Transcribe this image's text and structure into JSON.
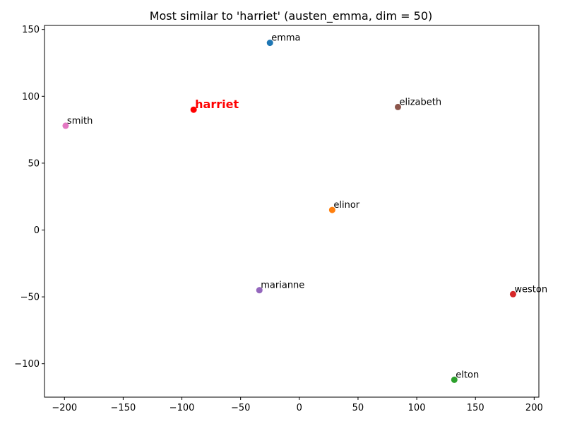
{
  "chart_data": {
    "type": "scatter",
    "title": "Most similar to 'harriet' (austen_emma, dim = 50)",
    "xlabel": "",
    "ylabel": "",
    "xlim": [
      -217,
      204
    ],
    "ylim": [
      -125,
      153
    ],
    "xticks": [
      -200,
      -150,
      -100,
      -50,
      0,
      50,
      100,
      150,
      200
    ],
    "yticks": [
      -100,
      -50,
      0,
      50,
      100,
      150
    ],
    "xtick_labels": [
      "−200",
      "−150",
      "−100",
      "−50",
      "0",
      "50",
      "100",
      "150",
      "200"
    ],
    "ytick_labels": [
      "−100",
      "−50",
      "0",
      "50",
      "100",
      "150"
    ],
    "grid": false,
    "points": [
      {
        "label": "harriet",
        "x": -90,
        "y": 90,
        "color": "#ff0000",
        "highlight": true
      },
      {
        "label": "emma",
        "x": -25,
        "y": 140,
        "color": "#1f77b4",
        "highlight": false
      },
      {
        "label": "elinor",
        "x": 28,
        "y": 15,
        "color": "#ff7f0e",
        "highlight": false
      },
      {
        "label": "elton",
        "x": 132,
        "y": -112,
        "color": "#2ca02c",
        "highlight": false
      },
      {
        "label": "weston",
        "x": 182,
        "y": -48,
        "color": "#d62728",
        "highlight": false
      },
      {
        "label": "marianne",
        "x": -34,
        "y": -45,
        "color": "#9467bd",
        "highlight": false
      },
      {
        "label": "elizabeth",
        "x": 84,
        "y": 92,
        "color": "#8c564b",
        "highlight": false
      },
      {
        "label": "smith",
        "x": -199,
        "y": 78,
        "color": "#e377c2",
        "highlight": false
      }
    ]
  }
}
